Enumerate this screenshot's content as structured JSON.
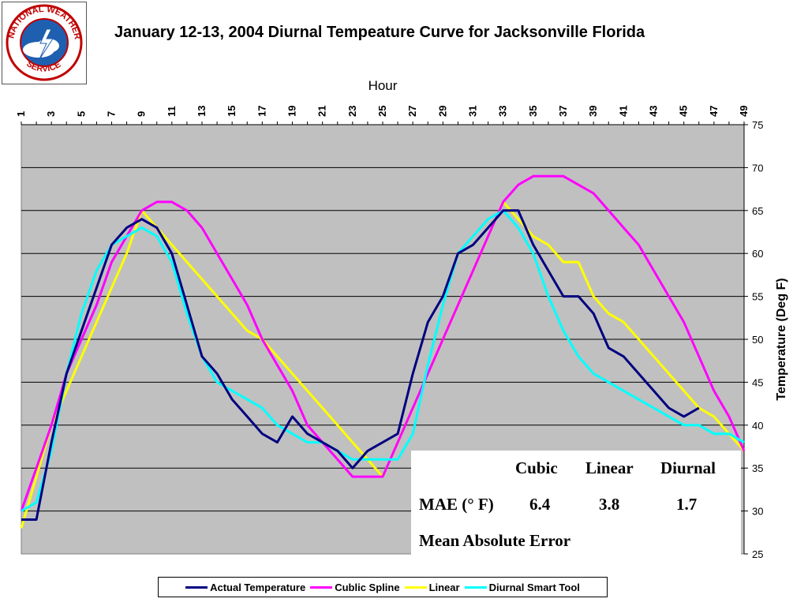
{
  "title": "January 12-13, 2004 Diurnal Tempeature Curve for Jacksonville Florida",
  "logo": {
    "name": "national-weather-service-logo",
    "text": "NATIONAL WEATHER SERVICE"
  },
  "colors": {
    "plot_bg": "#c0c0c0",
    "actual": "#000080",
    "cubic": "#ff00ff",
    "linear": "#ffff00",
    "diurnal": "#00ffff"
  },
  "chart_data": {
    "type": "line",
    "xlabel": "Hour",
    "ylabel": "Temperature (Deg F)",
    "xlim": [
      1,
      49
    ],
    "ylim": [
      25,
      75
    ],
    "x_ticks": [
      "1",
      "3",
      "5",
      "7",
      "9",
      "11",
      "13",
      "15",
      "17",
      "19",
      "21",
      "23",
      "25",
      "27",
      "29",
      "31",
      "33",
      "35",
      "37",
      "39",
      "41",
      "43",
      "45",
      "47",
      "49"
    ],
    "y_ticks": [
      "25",
      "30",
      "35",
      "40",
      "45",
      "50",
      "55",
      "60",
      "65",
      "70",
      "75"
    ],
    "grid": true,
    "legend_position": "bottom",
    "x": [
      1,
      2,
      3,
      4,
      5,
      6,
      7,
      8,
      9,
      10,
      11,
      12,
      13,
      14,
      15,
      16,
      17,
      18,
      19,
      20,
      21,
      22,
      23,
      24,
      25,
      26,
      27,
      28,
      29,
      30,
      31,
      32,
      33,
      34,
      35,
      36,
      37,
      38,
      39,
      40,
      41,
      42,
      43,
      44,
      45,
      46,
      47,
      48,
      49
    ],
    "series": [
      {
        "name": "Actual Temperature",
        "color": "#000080",
        "values": [
          29,
          29,
          38,
          46,
          51,
          56,
          61,
          63,
          64,
          63,
          60,
          54,
          48,
          46,
          43,
          41,
          39,
          38,
          41,
          39,
          38,
          37,
          35,
          37,
          38,
          39,
          46,
          52,
          55,
          60,
          61,
          63,
          65,
          65,
          61,
          58,
          55,
          55,
          53,
          49,
          48,
          46,
          44,
          42,
          41,
          42,
          null,
          null,
          null
        ]
      },
      {
        "name": "Cublic Spline",
        "color": "#ff00ff",
        "values": [
          30,
          35,
          40,
          46,
          50,
          54,
          59,
          62,
          65,
          66,
          66,
          65,
          63,
          60,
          57,
          54,
          50,
          47,
          44,
          40,
          38,
          36,
          34,
          34,
          34,
          38,
          42,
          46,
          50,
          54,
          58,
          62,
          66,
          68,
          69,
          69,
          69,
          68,
          67,
          65,
          63,
          61,
          58,
          55,
          52,
          48,
          44,
          41,
          37
        ]
      },
      {
        "name": "Linear",
        "color": "#ffff00",
        "values": [
          28,
          34,
          40,
          44,
          48,
          52,
          56,
          60,
          65,
          63,
          61,
          59,
          57,
          55,
          53,
          51,
          50,
          48,
          46,
          44,
          42,
          40,
          38,
          36,
          34,
          38,
          42,
          46,
          50,
          54,
          58,
          62,
          66,
          64,
          62,
          61,
          59,
          59,
          55,
          53,
          52,
          50,
          48,
          46,
          44,
          42,
          41,
          39,
          37
        ]
      },
      {
        "name": "Diurnal Smart Tool",
        "color": "#00ffff",
        "values": [
          30,
          31,
          37,
          46,
          53,
          58,
          61,
          62,
          63,
          62,
          59,
          53,
          48,
          45,
          44,
          43,
          42,
          40,
          39,
          38,
          38,
          37,
          36,
          36,
          36,
          36,
          39,
          47,
          54,
          60,
          62,
          64,
          65,
          63,
          60,
          55,
          51,
          48,
          46,
          45,
          44,
          43,
          42,
          41,
          40,
          40,
          39,
          39,
          38
        ]
      }
    ]
  },
  "legend": [
    {
      "label": "Actual Temperature",
      "color": "#000080"
    },
    {
      "label": "Cublic Spline",
      "color": "#ff00ff"
    },
    {
      "label": "Linear",
      "color": "#ffff00"
    },
    {
      "label": "Diurnal Smart Tool",
      "color": "#00ffff"
    }
  ],
  "mae_table": {
    "headers": [
      "Cubic",
      "Linear",
      "Diurnal"
    ],
    "row_label": "MAE (° F)",
    "values": [
      "6.4",
      "3.8",
      "1.7"
    ],
    "caption": "Mean Absolute Error"
  }
}
